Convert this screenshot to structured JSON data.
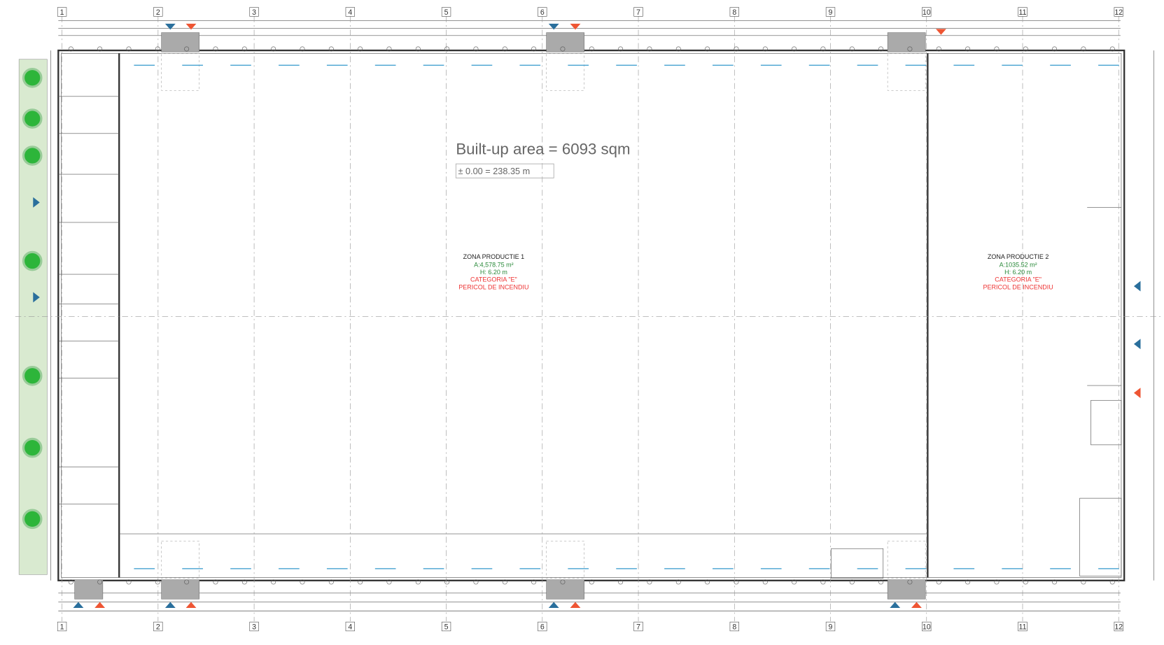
{
  "title": "Built-up area = 6093 sqm",
  "datum": "± 0.00 = 238.35 m",
  "grid_axes": {
    "top": [
      "1",
      "2",
      "3",
      "4",
      "5",
      "6",
      "7",
      "8",
      "9",
      "10",
      "11",
      "12"
    ],
    "bottom": [
      "1",
      "2",
      "3",
      "4",
      "5",
      "6",
      "7",
      "8",
      "9",
      "10",
      "11",
      "12"
    ]
  },
  "zones": [
    {
      "name": "ZONA PRODUCTIE 1",
      "area": "A:4,578.75 m²",
      "height": "H: 6.20 m",
      "category": "CATEGORIA \"E\"",
      "hazard": "PERICOL DE INCENDIU"
    },
    {
      "name": "ZONA PRODUCTIE 2",
      "area": "A:1035.52 m²",
      "height": "H: 6.20 m",
      "category": "CATEGORIA \"E\"",
      "hazard": "PERICOL DE INCENDIU"
    }
  ]
}
